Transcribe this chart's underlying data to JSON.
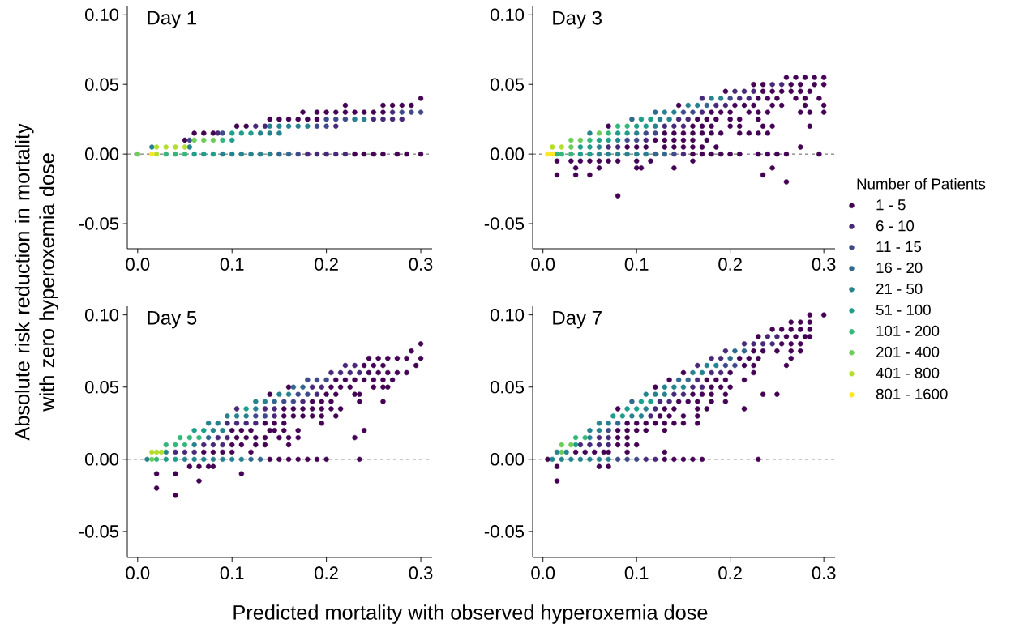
{
  "chart_data": [
    {
      "type": "scatter",
      "title": "Day 1",
      "ylabel": "Absolute risk reduction in mortality with zero hyperoxemia dose",
      "marker": "circle",
      "xlim": [
        -0.011,
        0.312
      ],
      "ylim": [
        -0.068,
        0.106
      ],
      "xticks": [
        {
          "value": 0,
          "label": "0.0"
        },
        {
          "value": 0.1,
          "label": "0.1"
        },
        {
          "value": 0.2,
          "label": "0.2"
        },
        {
          "value": 0.3,
          "label": "0.3"
        }
      ],
      "yticks": [
        {
          "value": -0.05,
          "label": "-0.05"
        },
        {
          "value": 0,
          "label": "0.00"
        },
        {
          "value": 0.05,
          "label": "0.05"
        },
        {
          "value": 0.1,
          "label": "0.10"
        }
      ],
      "ref_lines": [
        {
          "axis": "y",
          "value": 0,
          "color": "#333333",
          "line_style": "dashed"
        }
      ],
      "series": [
        {
          "color": "#440154",
          "x": [
            0.23,
            0.24,
            0.25,
            0.26,
            0.275,
            0.285,
            0.3,
            0.05,
            0.06,
            0.07,
            0.08,
            0.105,
            0.115,
            0.14,
            0.15,
            0.16,
            0.17,
            0.18,
            0.19,
            0.175,
            0.19,
            0.2,
            0.21,
            0.22,
            0.23,
            0.24,
            0.25,
            0.26,
            0.22,
            0.26,
            0.27,
            0.28,
            0.29,
            0.3
          ],
          "values": [
            0,
            0,
            0,
            0,
            0,
            0,
            0,
            0.01,
            0.015,
            0.015,
            0.015,
            0.02,
            0.02,
            0.025,
            0.025,
            0.025,
            0.025,
            0.025,
            0.025,
            0.03,
            0.03,
            0.03,
            0.03,
            0.03,
            0.03,
            0.03,
            0.03,
            0.03,
            0.035,
            0.035,
            0.035,
            0.035,
            0.035,
            0.04
          ]
        },
        {
          "color": "#482878",
          "x": [
            0.18,
            0.19,
            0.2,
            0.21,
            0.22,
            0.085,
            0.125,
            0.135,
            0.21,
            0.25,
            0.26,
            0.27,
            0.28,
            0.27
          ],
          "values": [
            0,
            0,
            0,
            0,
            0,
            0.015,
            0.02,
            0.02,
            0.02,
            0.025,
            0.025,
            0.025,
            0.025,
            0.03
          ]
        },
        {
          "color": "#3e4a89",
          "x": [
            0.17,
            0.055,
            0.09,
            0.19,
            0.2,
            0.2,
            0.21,
            0.22,
            0.28,
            0.29,
            0.3
          ],
          "values": [
            0,
            0.01,
            0.015,
            0.02,
            0.02,
            0.025,
            0.025,
            0.025,
            0.03,
            0.03,
            0.03
          ]
        },
        {
          "color": "#31688e",
          "x": [
            0.15,
            0.16
          ],
          "values": [
            0,
            0
          ]
        },
        {
          "color": "#26828e",
          "x": [
            0.09,
            0.1,
            0.11,
            0.12,
            0.13,
            0.14,
            0.015,
            0.055,
            0.13,
            0.14,
            0.15,
            0.14,
            0.15,
            0.16,
            0.17,
            0.18,
            0.23,
            0.24
          ],
          "values": [
            0,
            0,
            0,
            0,
            0,
            0,
            0.005,
            0.005,
            0.015,
            0.015,
            0.015,
            0.02,
            0.02,
            0.02,
            0.02,
            0.02,
            0.025,
            0.025
          ]
        },
        {
          "color": "#1f9e89",
          "x": [
            0.06,
            0.07,
            0.08,
            0.1,
            0.1,
            0.11,
            0.12
          ],
          "values": [
            0,
            0,
            0,
            0.01,
            0.015,
            0.015,
            0.015
          ]
        },
        {
          "color": "#35b779",
          "x": [
            0.03,
            0.04,
            0.05,
            0.09
          ],
          "values": [
            0,
            0,
            0,
            0.01
          ]
        },
        {
          "color": "#6dcd59",
          "x": [
            0.0,
            0.06,
            0.07,
            0.08
          ],
          "values": [
            0,
            0.01,
            0.01,
            0.01
          ]
        },
        {
          "color": "#b4de2c",
          "x": [
            0.02,
            0.02,
            0.03,
            0.04,
            0.05
          ],
          "values": [
            0,
            0.005,
            0.005,
            0.005,
            0.005
          ]
        },
        {
          "color": "#fde725",
          "x": [
            0.015
          ],
          "values": [
            0
          ]
        }
      ]
    },
    {
      "type": "scatter",
      "title": "Day 3",
      "legend_title": "Number of Patients",
      "legend": "right",
      "marker": "circle",
      "xlim": [
        -0.011,
        0.312
      ],
      "ylim": [
        -0.068,
        0.106
      ],
      "xticks": [
        {
          "value": 0,
          "label": "0.0"
        },
        {
          "value": 0.1,
          "label": "0.1"
        },
        {
          "value": 0.2,
          "label": "0.2"
        },
        {
          "value": 0.3,
          "label": "0.3"
        }
      ],
      "yticks": [
        {
          "value": -0.05,
          "label": "-0.05"
        },
        {
          "value": 0,
          "label": "0.00"
        },
        {
          "value": 0.05,
          "label": "0.05"
        },
        {
          "value": 0.1,
          "label": "0.10"
        }
      ],
      "ref_lines": [
        {
          "axis": "y",
          "value": 0,
          "color": "#333333",
          "line_style": "dashed"
        }
      ],
      "series": [
        {
          "name": "1 - 5",
          "color": "#440154",
          "x": [
            0.16,
            0.17,
            0.18,
            0.19,
            0.2,
            0.21,
            0.23,
            0.24,
            0.25,
            0.26,
            0.295,
            0.09,
            0.1,
            0.11,
            0.13,
            0.14,
            0.15,
            0.16,
            0.17,
            0.185,
            0.275,
            0.12,
            0.13,
            0.14,
            0.15,
            0.16,
            0.175,
            0.13,
            0.14,
            0.15,
            0.16,
            0.17,
            0.18,
            0.19,
            0.21,
            0.22,
            0.23,
            0.24,
            0.07,
            0.16,
            0.17,
            0.18,
            0.2,
            0.21,
            0.235,
            0.245,
            0.285,
            0.165,
            0.175,
            0.185,
            0.2,
            0.21,
            0.23,
            0.18,
            0.19,
            0.2,
            0.22,
            0.23,
            0.24,
            0.275,
            0.285,
            0.3,
            0.145,
            0.205,
            0.215,
            0.225,
            0.245,
            0.255,
            0.28,
            0.3,
            0.23,
            0.24,
            0.25,
            0.27,
            0.28,
            0.295,
            0.195,
            0.235,
            0.245,
            0.255,
            0.265,
            0.275,
            0.285,
            0.225,
            0.235,
            0.265,
            0.275,
            0.29,
            0.3,
            0.26,
            0.27,
            0.28,
            0.29,
            0.3,
            0.015,
            0.03,
            0.04,
            0.05,
            0.06,
            0.07,
            0.08,
            0.1,
            0.115,
            0.16,
            0.035,
            0.06,
            0.1,
            0.105,
            0.14,
            0.245,
            0.015,
            0.035,
            0.05,
            0.235,
            0.26,
            0.08
          ],
          "values": [
            0,
            0,
            0,
            0,
            0,
            0,
            0,
            0,
            0,
            0,
            0,
            0.005,
            0.005,
            0.005,
            0.005,
            0.005,
            0.005,
            0.005,
            0.005,
            0.005,
            0.005,
            0.01,
            0.01,
            0.01,
            0.01,
            0.01,
            0.01,
            0.015,
            0.015,
            0.015,
            0.015,
            0.015,
            0.015,
            0.015,
            0.015,
            0.015,
            0.015,
            0.015,
            0.02,
            0.02,
            0.02,
            0.02,
            0.02,
            0.02,
            0.02,
            0.02,
            0.02,
            0.025,
            0.025,
            0.025,
            0.025,
            0.025,
            0.025,
            0.03,
            0.03,
            0.03,
            0.03,
            0.03,
            0.03,
            0.03,
            0.03,
            0.03,
            0.035,
            0.035,
            0.035,
            0.035,
            0.035,
            0.035,
            0.035,
            0.035,
            0.04,
            0.04,
            0.04,
            0.04,
            0.04,
            0.04,
            0.045,
            0.045,
            0.045,
            0.045,
            0.045,
            0.045,
            0.045,
            0.05,
            0.05,
            0.05,
            0.05,
            0.05,
            0.05,
            0.055,
            0.055,
            0.055,
            0.055,
            0.055,
            -0.005,
            -0.005,
            -0.005,
            -0.005,
            -0.005,
            -0.005,
            -0.005,
            -0.005,
            -0.005,
            -0.005,
            -0.01,
            -0.01,
            -0.01,
            -0.01,
            -0.01,
            -0.01,
            -0.015,
            -0.015,
            -0.015,
            -0.015,
            -0.02,
            -0.03
          ]
        },
        {
          "name": "6 - 10",
          "color": "#482878",
          "x": [
            0.15,
            0.07,
            0.08,
            0.11,
            0.13,
            0.14,
            0.15,
            0.145,
            0.155,
            0.17,
            0.185,
            0.195,
            0.17,
            0.21,
            0.22,
            0.205,
            0.215,
            0.225,
            0.245,
            0.255
          ],
          "values": [
            0,
            0.005,
            0.005,
            0.01,
            0.02,
            0.02,
            0.02,
            0.025,
            0.025,
            0.03,
            0.035,
            0.035,
            0.04,
            0.04,
            0.04,
            0.045,
            0.045,
            0.045,
            0.05,
            0.05
          ]
        },
        {
          "name": "11 - 15",
          "color": "#3e4a89",
          "x": [
            0.14,
            0.09,
            0.1,
            0.11,
            0.12,
            0.15,
            0.16,
            0.2
          ],
          "values": [
            0,
            0.01,
            0.01,
            0.015,
            0.015,
            0.03,
            0.03,
            0.04
          ]
        },
        {
          "name": "16 - 20",
          "color": "#31688e",
          "x": [
            0.12,
            0.13,
            0.095,
            0.12,
            0.175
          ],
          "values": [
            0,
            0,
            0.025,
            0.03,
            0.035
          ]
        },
        {
          "name": "21 - 50",
          "color": "#26828e",
          "x": [
            0.06,
            0.07,
            0.08,
            0.09,
            0.1,
            0.11,
            0.06,
            0.08,
            0.05,
            0.1,
            0.12,
            0.125,
            0.135,
            0.13,
            0.14,
            0.155,
            0.165,
            0.18,
            0.19
          ],
          "values": [
            0,
            0,
            0,
            0,
            0,
            0,
            0.005,
            0.01,
            0.015,
            0.015,
            0.02,
            0.025,
            0.025,
            0.03,
            0.03,
            0.035,
            0.035,
            0.04,
            0.04
          ]
        },
        {
          "name": "51 - 100",
          "color": "#1f9e89",
          "x": [
            0.04,
            0.05,
            0.04,
            0.05,
            0.06,
            0.07,
            0.08,
            0.09,
            0.1,
            0.11,
            0.105,
            0.115
          ],
          "values": [
            0,
            0,
            0.005,
            0.005,
            0.01,
            0.01,
            0.015,
            0.015,
            0.02,
            0.02,
            0.025,
            0.025
          ]
        },
        {
          "name": "101 - 200",
          "color": "#35b779",
          "x": [
            0.015,
            0.02,
            0.03,
            0.05,
            0.07,
            0.08,
            0.09
          ],
          "values": [
            0,
            0,
            0,
            0.01,
            0.015,
            0.02,
            0.02
          ]
        },
        {
          "name": "201 - 400",
          "color": "#6dcd59",
          "x": [
            0.03,
            0.03,
            0.04,
            0.06
          ],
          "values": [
            0.005,
            0.01,
            0.01,
            0.015
          ]
        },
        {
          "name": "401 - 800",
          "color": "#b4de2c",
          "x": [
            0.01,
            0.02
          ],
          "values": [
            0.005,
            0.005
          ]
        },
        {
          "name": "801 - 1600",
          "color": "#fde725",
          "x": [
            0.005,
            0.01
          ],
          "values": [
            0,
            0
          ]
        }
      ]
    },
    {
      "type": "scatter",
      "title": "Day 5",
      "xlabel": "Predicted mortality with observed hyperoxemia dose",
      "marker": "circle",
      "xlim": [
        -0.011,
        0.312
      ],
      "ylim": [
        -0.068,
        0.106
      ],
      "xticks": [
        {
          "value": 0,
          "label": "0.0"
        },
        {
          "value": 0.1,
          "label": "0.1"
        },
        {
          "value": 0.2,
          "label": "0.2"
        },
        {
          "value": 0.3,
          "label": "0.3"
        }
      ],
      "yticks": [
        {
          "value": -0.05,
          "label": "-0.05"
        },
        {
          "value": 0,
          "label": "0.00"
        },
        {
          "value": 0.05,
          "label": "0.05"
        },
        {
          "value": 0.1,
          "label": "0.10"
        }
      ],
      "ref_lines": [
        {
          "axis": "y",
          "value": 0,
          "color": "#333333",
          "line_style": "dashed"
        }
      ],
      "series": [
        {
          "color": "#440154",
          "x": [
            0.14,
            0.15,
            0.16,
            0.17,
            0.18,
            0.19,
            0.2,
            0.235,
            0.07,
            0.08,
            0.09,
            0.1,
            0.12,
            0.1,
            0.11,
            0.125,
            0.135,
            0.16,
            0.105,
            0.115,
            0.125,
            0.135,
            0.15,
            0.16,
            0.17,
            0.23,
            0.1,
            0.11,
            0.12,
            0.14,
            0.145,
            0.155,
            0.17,
            0.24,
            0.135,
            0.145,
            0.155,
            0.195,
            0.155,
            0.165,
            0.175,
            0.185,
            0.195,
            0.21,
            0.155,
            0.165,
            0.175,
            0.185,
            0.195,
            0.205,
            0.215,
            0.185,
            0.195,
            0.205,
            0.235,
            0.26,
            0.14,
            0.2,
            0.21,
            0.23,
            0.235,
            0.16,
            0.205,
            0.215,
            0.225,
            0.25,
            0.26,
            0.265,
            0.21,
            0.22,
            0.23,
            0.24,
            0.25,
            0.26,
            0.27,
            0.245,
            0.255,
            0.265,
            0.275,
            0.285,
            0.24,
            0.25,
            0.26,
            0.295,
            0.245,
            0.255,
            0.265,
            0.275,
            0.285,
            0.3,
            0.29,
            0.3,
            0.055,
            0.065,
            0.075,
            0.08,
            0.02,
            0.04,
            0.11,
            0.065,
            0.02,
            0.04
          ],
          "values": [
            0,
            0,
            0,
            0,
            0,
            0,
            0,
            0,
            0.005,
            0.005,
            0.005,
            0.005,
            0.005,
            0.01,
            0.01,
            0.01,
            0.01,
            0.01,
            0.015,
            0.015,
            0.015,
            0.015,
            0.015,
            0.015,
            0.015,
            0.015,
            0.02,
            0.02,
            0.02,
            0.02,
            0.02,
            0.02,
            0.02,
            0.02,
            0.025,
            0.025,
            0.025,
            0.025,
            0.03,
            0.03,
            0.03,
            0.03,
            0.03,
            0.03,
            0.035,
            0.035,
            0.035,
            0.035,
            0.035,
            0.035,
            0.035,
            0.04,
            0.04,
            0.04,
            0.04,
            0.04,
            0.045,
            0.045,
            0.045,
            0.045,
            0.045,
            0.05,
            0.05,
            0.05,
            0.05,
            0.05,
            0.05,
            0.05,
            0.055,
            0.055,
            0.055,
            0.055,
            0.055,
            0.055,
            0.055,
            0.06,
            0.06,
            0.06,
            0.06,
            0.06,
            0.065,
            0.065,
            0.065,
            0.065,
            0.07,
            0.07,
            0.07,
            0.07,
            0.07,
            0.07,
            0.075,
            0.08,
            -0.005,
            -0.005,
            -0.005,
            -0.005,
            -0.01,
            -0.01,
            -0.01,
            -0.015,
            -0.02,
            -0.025
          ]
        },
        {
          "color": "#482878",
          "x": [
            0.04,
            0.05,
            0.06,
            0.07,
            0.08,
            0.09,
            0.085,
            0.095,
            0.095,
            0.105,
            0.115,
            0.125,
            0.145,
            0.105,
            0.135,
            0.145,
            0.175,
            0.19,
            0.185,
            0.195,
            0.205,
            0.215,
            0.225,
            0.235,
            0.22,
            0.23
          ],
          "values": [
            0.005,
            0.005,
            0.005,
            0.01,
            0.01,
            0.01,
            0.015,
            0.015,
            0.025,
            0.025,
            0.025,
            0.025,
            0.03,
            0.035,
            0.035,
            0.035,
            0.04,
            0.045,
            0.05,
            0.05,
            0.06,
            0.06,
            0.06,
            0.06,
            0.065,
            0.065
          ]
        },
        {
          "color": "#3e4a89",
          "x": [
            0.125,
            0.135,
            0.155,
            0.165,
            0.17,
            0.18,
            0.18,
            0.19,
            0.2
          ],
          "values": [
            0.03,
            0.03,
            0.04,
            0.04,
            0.045,
            0.045,
            0.055,
            0.055,
            0.055
          ]
        },
        {
          "color": "#31688e",
          "x": [
            0.12,
            0.13,
            0.075,
            0.145,
            0.165,
            0.175
          ],
          "values": [
            0,
            0,
            0.015,
            0.04,
            0.05,
            0.05
          ]
        },
        {
          "color": "#26828e",
          "x": [
            0.01,
            0.05,
            0.06,
            0.07,
            0.08,
            0.09,
            0.1,
            0.11,
            0.03,
            0.06,
            0.08,
            0.09,
            0.075,
            0.085,
            0.095,
            0.105,
            0.115,
            0.125,
            0.125,
            0.135,
            0.15,
            0.16
          ],
          "values": [
            0,
            0,
            0,
            0,
            0,
            0,
            0,
            0,
            0.005,
            0.01,
            0.02,
            0.02,
            0.025,
            0.025,
            0.03,
            0.03,
            0.03,
            0.035,
            0.04,
            0.04,
            0.045,
            0.045
          ]
        },
        {
          "color": "#1f9e89",
          "x": [
            0.03,
            0.04,
            0.06,
            0.07,
            0.115
          ],
          "values": [
            0,
            0,
            0.02,
            0.02,
            0.035
          ]
        },
        {
          "color": "#35b779",
          "x": [
            0.02,
            0.03,
            0.04,
            0.05,
            0.045,
            0.055,
            0.065
          ],
          "values": [
            0,
            0.01,
            0.01,
            0.01,
            0.015,
            0.015,
            0.015
          ]
        },
        {
          "color": "#6dcd59",
          "x": [
            0.015
          ],
          "values": [
            0
          ]
        },
        {
          "color": "#b4de2c",
          "x": [
            0.015,
            0.02,
            0.025
          ],
          "values": [
            0.005,
            0.005,
            0.005
          ]
        }
      ]
    },
    {
      "type": "scatter",
      "title": "Day 7",
      "marker": "circle",
      "xlim": [
        -0.011,
        0.312
      ],
      "ylim": [
        -0.068,
        0.106
      ],
      "xticks": [
        {
          "value": 0,
          "label": "0.0"
        },
        {
          "value": 0.1,
          "label": "0.1"
        },
        {
          "value": 0.2,
          "label": "0.2"
        },
        {
          "value": 0.3,
          "label": "0.3"
        }
      ],
      "yticks": [
        {
          "value": -0.05,
          "label": "-0.05"
        },
        {
          "value": 0,
          "label": "0.00"
        },
        {
          "value": 0.05,
          "label": "0.05"
        },
        {
          "value": 0.1,
          "label": "0.10"
        }
      ],
      "ref_lines": [
        {
          "axis": "y",
          "value": 0,
          "color": "#333333",
          "line_style": "dashed"
        }
      ],
      "series": [
        {
          "color": "#440154",
          "x": [
            0.005,
            0.13,
            0.14,
            0.15,
            0.16,
            0.17,
            0.23,
            0.035,
            0.045,
            0.055,
            0.065,
            0.07,
            0.09,
            0.13,
            0.08,
            0.09,
            0.1,
            0.08,
            0.09,
            0.08,
            0.09,
            0.1,
            0.11,
            0.13,
            0.09,
            0.1,
            0.11,
            0.12,
            0.13,
            0.14,
            0.15,
            0.165,
            0.125,
            0.135,
            0.15,
            0.165,
            0.08,
            0.13,
            0.14,
            0.165,
            0.175,
            0.215,
            0.145,
            0.155,
            0.165,
            0.18,
            0.195,
            0.16,
            0.17,
            0.18,
            0.195,
            0.235,
            0.25,
            0.12,
            0.18,
            0.19,
            0.2,
            0.135,
            0.175,
            0.185,
            0.195,
            0.215,
            0.15,
            0.2,
            0.225,
            0.215,
            0.225,
            0.26,
            0.21,
            0.22,
            0.23,
            0.265,
            0.225,
            0.235,
            0.25,
            0.265,
            0.275,
            0.255,
            0.265,
            0.275,
            0.23,
            0.26,
            0.27,
            0.28,
            0.285,
            0.245,
            0.255,
            0.265,
            0.275,
            0.285,
            0.265,
            0.275,
            0.285,
            0.285,
            0.3,
            0.015,
            0.06,
            0.07,
            0.015
          ],
          "values": [
            0,
            0,
            0,
            0,
            0,
            0,
            0,
            0.005,
            0.005,
            0.005,
            0.005,
            0.005,
            0.005,
            0.005,
            0.01,
            0.01,
            0.01,
            0.015,
            0.015,
            0.02,
            0.02,
            0.02,
            0.02,
            0.02,
            0.025,
            0.025,
            0.025,
            0.025,
            0.025,
            0.025,
            0.025,
            0.025,
            0.03,
            0.03,
            0.03,
            0.03,
            0.035,
            0.035,
            0.035,
            0.035,
            0.035,
            0.035,
            0.04,
            0.04,
            0.04,
            0.04,
            0.04,
            0.045,
            0.045,
            0.045,
            0.045,
            0.045,
            0.045,
            0.05,
            0.05,
            0.05,
            0.05,
            0.055,
            0.055,
            0.055,
            0.055,
            0.055,
            0.06,
            0.06,
            0.06,
            0.065,
            0.065,
            0.065,
            0.07,
            0.07,
            0.07,
            0.07,
            0.075,
            0.075,
            0.075,
            0.075,
            0.075,
            0.08,
            0.08,
            0.08,
            0.085,
            0.085,
            0.085,
            0.085,
            0.085,
            0.09,
            0.09,
            0.09,
            0.09,
            0.09,
            0.095,
            0.095,
            0.095,
            0.1,
            0.1,
            -0.005,
            -0.005,
            -0.005,
            -0.015
          ]
        },
        {
          "color": "#482878",
          "x": [
            0.11,
            0.12,
            0.04,
            0.05,
            0.06,
            0.07,
            0.06,
            0.07,
            0.115,
            0.12,
            0.125,
            0.135,
            0.14,
            0.15,
            0.16,
            0.17,
            0.165,
            0.18,
            0.19,
            0.165,
            0.18,
            0.19,
            0.195,
            0.215,
            0.225,
            0.235,
            0.245,
            0.24,
            0.25
          ],
          "values": [
            0,
            0,
            0.01,
            0.01,
            0.01,
            0.01,
            0.015,
            0.015,
            0.03,
            0.035,
            0.04,
            0.04,
            0.045,
            0.045,
            0.05,
            0.05,
            0.055,
            0.06,
            0.06,
            0.065,
            0.07,
            0.07,
            0.075,
            0.08,
            0.08,
            0.08,
            0.08,
            0.085,
            0.085
          ]
        },
        {
          "color": "#3e4a89",
          "x": [
            0.08,
            0.09,
            0.1,
            0.07,
            0.195,
            0.205
          ],
          "values": [
            0,
            0,
            0,
            0.02,
            0.065,
            0.065
          ]
        },
        {
          "color": "#31688e",
          "x": [
            0.08,
            0.095,
            0.145,
            0.155,
            0.2,
            0.205,
            0.215
          ],
          "values": [
            0.025,
            0.04,
            0.055,
            0.055,
            0.07,
            0.075,
            0.075
          ]
        },
        {
          "color": "#26828e",
          "x": [
            0.01,
            0.02,
            0.03,
            0.04,
            0.05,
            0.06,
            0.07,
            0.015,
            0.025,
            0.05,
            0.05,
            0.06,
            0.06,
            0.07,
            0.095,
            0.105,
            0.11,
            0.11,
            0.12,
            0.13,
            0.13,
            0.14,
            0.15,
            0.16,
            0.17,
            0.175,
            0.185
          ],
          "values": [
            0,
            0,
            0,
            0,
            0,
            0,
            0,
            0.005,
            0.005,
            0.015,
            0.02,
            0.02,
            0.025,
            0.025,
            0.03,
            0.03,
            0.035,
            0.045,
            0.045,
            0.045,
            0.05,
            0.05,
            0.05,
            0.06,
            0.06,
            0.065,
            0.065
          ]
        },
        {
          "color": "#1f9e89",
          "x": [
            0.035,
            0.075,
            0.085,
            0.09,
            0.1,
            0.105,
            0.115
          ],
          "values": [
            0.01,
            0.03,
            0.03,
            0.035,
            0.035,
            0.04,
            0.04
          ]
        },
        {
          "color": "#35b779",
          "x": [
            0.035,
            0.045
          ],
          "values": [
            0.015,
            0.015
          ]
        },
        {
          "color": "#6dcd59",
          "x": [
            0.02,
            0.02,
            0.03
          ],
          "values": [
            0.005,
            0.01,
            0.01
          ]
        }
      ]
    }
  ]
}
